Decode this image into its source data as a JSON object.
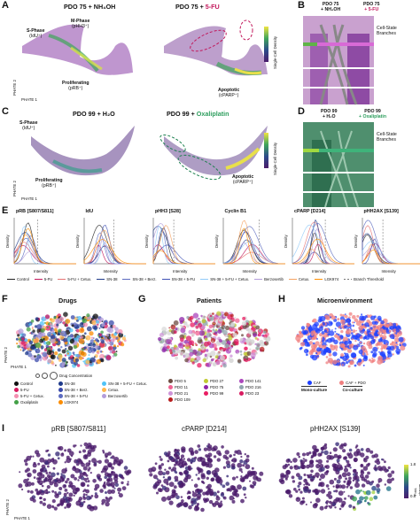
{
  "panels": {
    "A": {
      "letter": "A",
      "left_title": "PDO 75 + NH₄OH",
      "right_title_prefix": "PDO 75 + ",
      "right_title_drug": "5-FU",
      "labels": [
        "S-Phase",
        "(IdU⁺)",
        "M-Phase",
        "(pHH3⁺)",
        "Proliferating",
        "(pRB⁺)",
        "Apoptotic",
        "(cPARP⁺)"
      ],
      "xaxis": "PHATE 1",
      "yaxis": "PHATE 2",
      "colorbar": "Single-Cell Density"
    },
    "B": {
      "letter": "B",
      "top_left": [
        "PDO 75",
        "+ NH₄OH"
      ],
      "top_right": [
        "PDO 75",
        "+ 5-FU"
      ],
      "side": [
        "Cell-State",
        "Branches"
      ]
    },
    "C": {
      "letter": "C",
      "left_title": "PDO 99 + H₂O",
      "right_title_prefix": "PDO 99 + ",
      "right_title_drug": "Oxaliplatin",
      "labels": [
        "S-Phase",
        "(IdU⁺)",
        "Proliferating",
        "(pRB⁺)",
        "Apoptotic",
        "(cPARP⁺)"
      ],
      "xaxis": "PHATE 1",
      "yaxis": "PHATE 2",
      "colorbar": "Single-Cell Density"
    },
    "D": {
      "letter": "D",
      "top_left": [
        "PDO 99",
        "+ H₂O"
      ],
      "top_right": [
        "PDO 99",
        "+ Oxaliplatin"
      ],
      "side": [
        "Cell-State",
        "Branches"
      ]
    },
    "E": {
      "letter": "E",
      "titles": [
        "pRB [S807/S811]",
        "IdU",
        "pHH3 [S28]",
        "Cyclin B1",
        "cPARP [D214]",
        "pHH2AX [S139]"
      ],
      "xlabel": "Intensity",
      "ylabel": "Density",
      "legend": [
        {
          "name": "Control",
          "color": "#222222"
        },
        {
          "name": "5-FU",
          "color": "#c2185b"
        },
        {
          "name": "5-FU + Cetux.",
          "color": "#e57373"
        },
        {
          "name": "SN-38",
          "color": "#1e3a8a"
        },
        {
          "name": "SN-38 + Berz.",
          "color": "#5c6bc0"
        },
        {
          "name": "SN-38 + 5-FU",
          "color": "#3f51b5"
        },
        {
          "name": "SN-38 + 5-FU + Cetux.",
          "color": "#90caf9"
        },
        {
          "name": "Berzosertib",
          "color": "#b39ddb"
        },
        {
          "name": "Cetux.",
          "color": "#f4a261"
        },
        {
          "name": "LGK974",
          "color": "#ff8f00"
        },
        {
          "name": "Branch Threshold",
          "color": "#777777"
        }
      ]
    },
    "F": {
      "letter": "F",
      "title": "Drugs",
      "xaxis": "PHATE 1",
      "yaxis": "PHATE 2",
      "conc_label": "Drug Concentration",
      "legend": [
        {
          "name": "Control",
          "color": "#111111"
        },
        {
          "name": "SN-38",
          "color": "#1e3a8a"
        },
        {
          "name": "SN-38 + 5-FU + Cetux.",
          "color": "#4fc3f7"
        },
        {
          "name": "5-FU",
          "color": "#d81b60"
        },
        {
          "name": "SN-38 + Berz.",
          "color": "#3949ab"
        },
        {
          "name": "Cetux.",
          "color": "#ffb74d"
        },
        {
          "name": "5-FU + Cetux.",
          "color": "#f48fb1"
        },
        {
          "name": "SN-38 + 5-FU",
          "color": "#5c6bc0"
        },
        {
          "name": "Berzosertib",
          "color": "#b39ddb"
        },
        {
          "name": "Oxaliplatin",
          "color": "#43a047"
        },
        {
          "name": "LGK974",
          "color": "#fb8c00"
        }
      ]
    },
    "G": {
      "letter": "G",
      "title": "Patients",
      "legend": [
        {
          "name": "PDO 5",
          "color": "#6d4c41"
        },
        {
          "name": "PDO 27",
          "color": "#c0ca33"
        },
        {
          "name": "PDO 141",
          "color": "#ab47bc"
        },
        {
          "name": "PDO 11",
          "color": "#f06292"
        },
        {
          "name": "PDO 75",
          "color": "#8e24aa"
        },
        {
          "name": "PDO 216",
          "color": "#90a4ae"
        },
        {
          "name": "PDO 21",
          "color": "#ce93d8"
        },
        {
          "name": "PDO 99",
          "color": "#e91e63"
        },
        {
          "name": "PDO 23",
          "color": "#d81b60"
        },
        {
          "name": "PDO 109",
          "color": "#b71c1c"
        }
      ]
    },
    "H": {
      "letter": "H",
      "title": "Microenvironment",
      "legend": [
        {
          "name": "CAF",
          "color": "#1e40ff",
          "group": "Mono-culture"
        },
        {
          "name": "CAF + PDO",
          "color": "#f08080",
          "group": "Co-culture"
        }
      ]
    },
    "I": {
      "letter": "I",
      "titles": [
        "pRB [S807/S811]",
        "cPARP [D214]",
        "pHH2AX [S139]"
      ],
      "xaxis": "PHATE 1",
      "yaxis": "PHATE 2",
      "colorbar": "Fold-change vs Control",
      "cbar_ticks": [
        "1.8",
        "0.8"
      ]
    }
  }
}
